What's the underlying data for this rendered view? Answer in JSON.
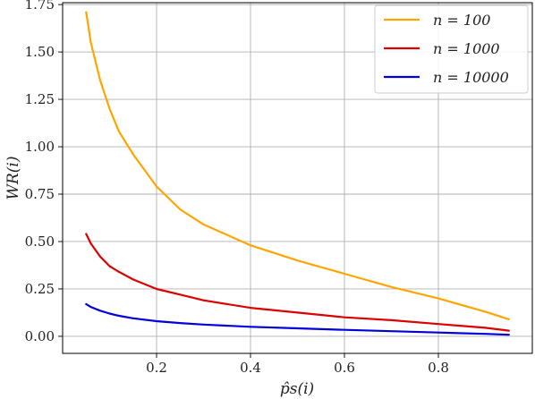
{
  "chart_data": {
    "type": "line",
    "title": "",
    "xlabel": "p̂s(i)",
    "ylabel": "WR(i)",
    "xlim": [
      0.0,
      1.0
    ],
    "ylim": [
      -0.09,
      1.76
    ],
    "xticks": [
      0.2,
      0.4,
      0.6,
      0.8
    ],
    "xtick_labels": [
      "0.2",
      "0.4",
      "0.6",
      "0.8"
    ],
    "yticks": [
      0.0,
      0.25,
      0.5,
      0.75,
      1.0,
      1.25,
      1.5,
      1.75
    ],
    "ytick_labels": [
      "0.00",
      "0.25",
      "0.50",
      "0.75",
      "1.00",
      "1.25",
      "1.50",
      "1.75"
    ],
    "grid": true,
    "legend_position": "top-right",
    "series": [
      {
        "name": "n = 100",
        "color": "#FFA500",
        "x": [
          0.05,
          0.06,
          0.08,
          0.1,
          0.12,
          0.15,
          0.2,
          0.25,
          0.3,
          0.4,
          0.5,
          0.6,
          0.7,
          0.8,
          0.9,
          0.95
        ],
        "y": [
          1.71,
          1.55,
          1.35,
          1.2,
          1.08,
          0.96,
          0.79,
          0.67,
          0.59,
          0.48,
          0.4,
          0.33,
          0.26,
          0.2,
          0.13,
          0.09
        ]
      },
      {
        "name": "n = 1000",
        "color": "#DD0000",
        "x": [
          0.05,
          0.06,
          0.08,
          0.1,
          0.12,
          0.15,
          0.2,
          0.25,
          0.3,
          0.4,
          0.5,
          0.6,
          0.7,
          0.8,
          0.9,
          0.95
        ],
        "y": [
          0.54,
          0.49,
          0.42,
          0.37,
          0.34,
          0.3,
          0.25,
          0.22,
          0.19,
          0.15,
          0.125,
          0.1,
          0.085,
          0.065,
          0.045,
          0.03
        ]
      },
      {
        "name": "n = 10000",
        "color": "#0000DD",
        "x": [
          0.05,
          0.06,
          0.08,
          0.1,
          0.12,
          0.15,
          0.2,
          0.25,
          0.3,
          0.4,
          0.5,
          0.6,
          0.7,
          0.8,
          0.9,
          0.95
        ],
        "y": [
          0.17,
          0.155,
          0.135,
          0.12,
          0.108,
          0.095,
          0.08,
          0.07,
          0.062,
          0.05,
          0.042,
          0.034,
          0.027,
          0.02,
          0.013,
          0.008
        ]
      }
    ]
  }
}
